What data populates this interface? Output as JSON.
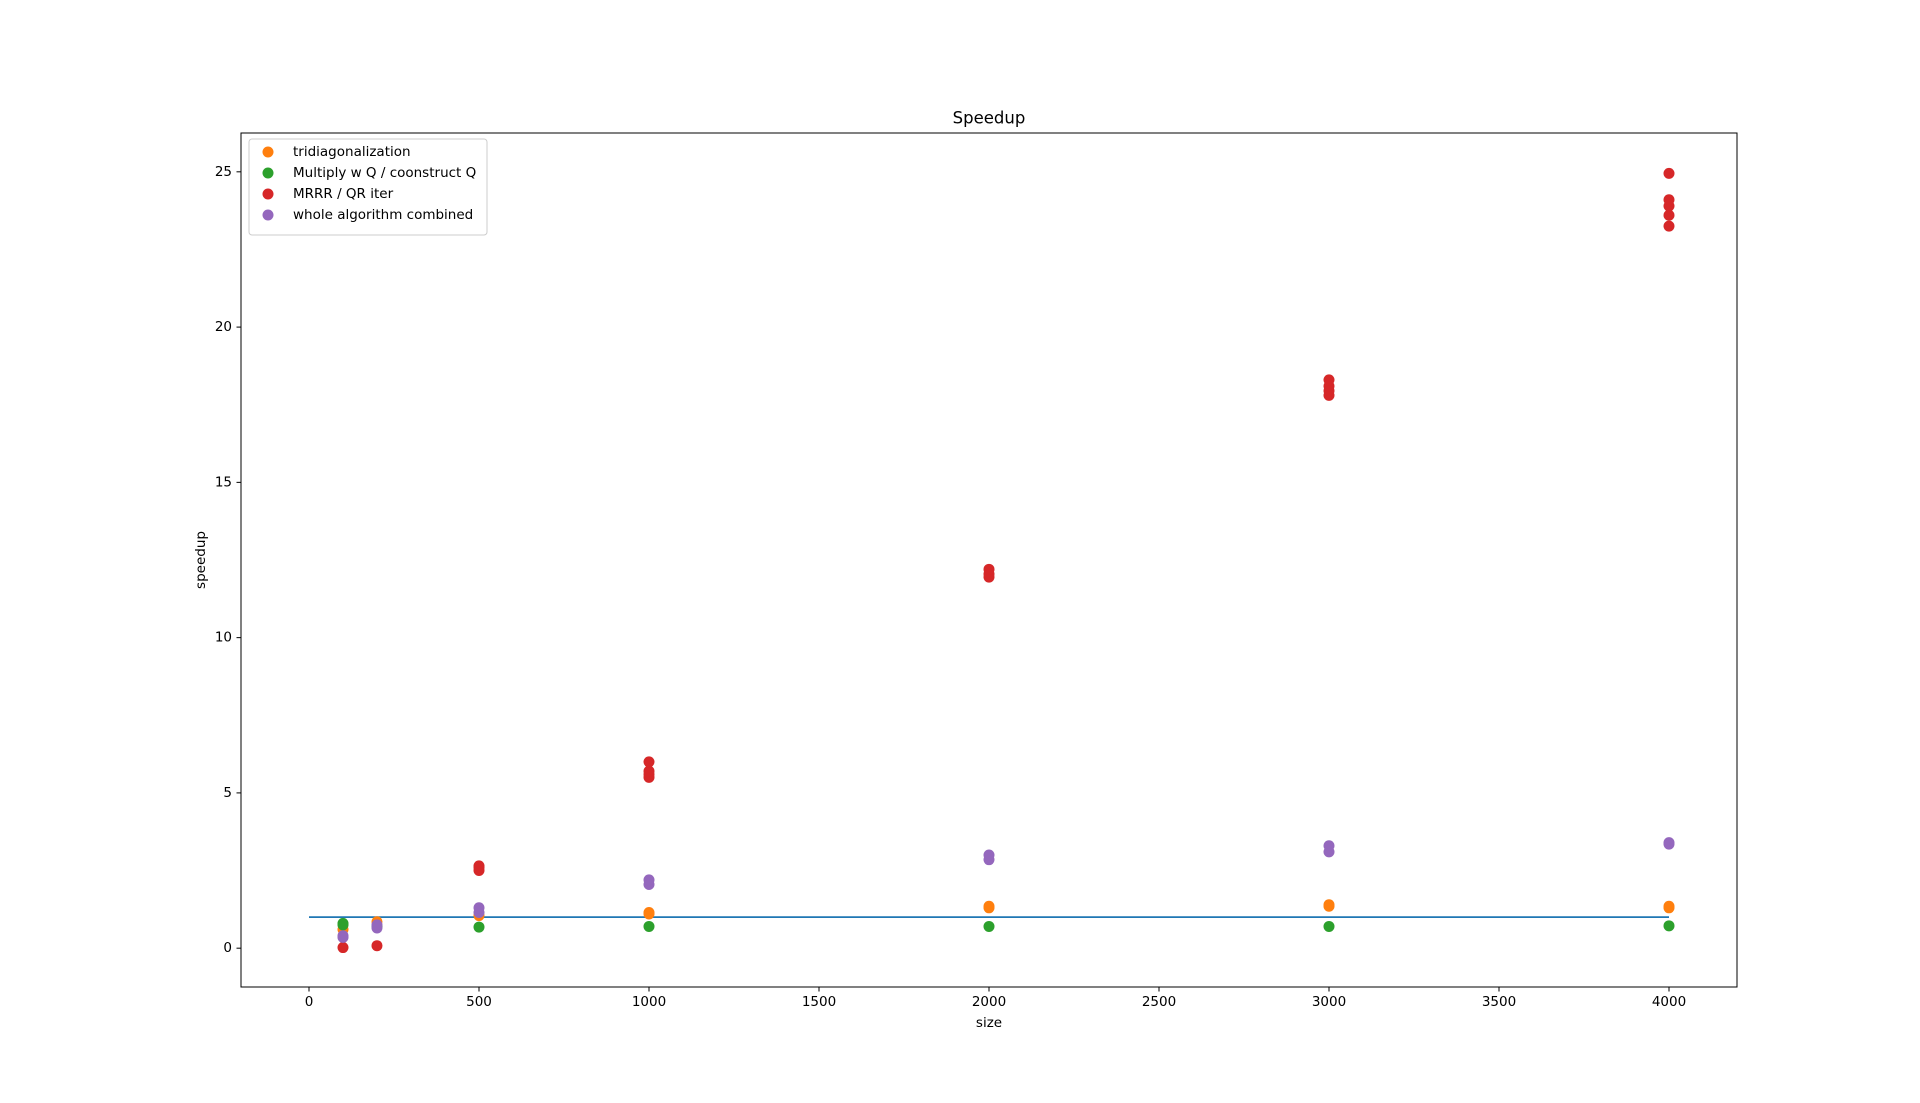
{
  "chart_data": {
    "type": "scatter",
    "title": "Speedup",
    "xlabel": "size",
    "ylabel": "speedup",
    "xlim": [
      -200,
      4200
    ],
    "ylim": [
      -1.25,
      26.25
    ],
    "xticks": [
      0,
      500,
      1000,
      1500,
      2000,
      2500,
      3000,
      3500,
      4000
    ],
    "yticks": [
      0,
      5,
      10,
      15,
      20,
      25
    ],
    "legend": "upper left",
    "reference_line": {
      "color": "#1f77b4",
      "x": [
        0,
        4000
      ],
      "values": [
        1,
        1
      ]
    },
    "series": [
      {
        "name": "tridiagonalization",
        "color": "#ff7f0e",
        "x": [
          100,
          200,
          500,
          1000,
          1000,
          2000,
          2000,
          3000,
          3000,
          4000,
          4000
        ],
        "values": [
          0.6,
          0.85,
          1.05,
          1.1,
          1.15,
          1.35,
          1.3,
          1.4,
          1.35,
          1.35,
          1.3
        ]
      },
      {
        "name": "Multiply w Q / coonstruct Q",
        "color": "#2ca02c",
        "x": [
          100,
          100,
          200,
          500,
          1000,
          2000,
          3000,
          4000
        ],
        "values": [
          0.8,
          0.75,
          0.7,
          0.68,
          0.7,
          0.7,
          0.7,
          0.72
        ]
      },
      {
        "name": "MRRR / QR iter",
        "color": "#d62728",
        "x": [
          100,
          200,
          500,
          500,
          500,
          1000,
          1000,
          1000,
          1000,
          2000,
          2000,
          2000,
          3000,
          3000,
          3000,
          3000,
          4000,
          4000,
          4000,
          4000,
          4000
        ],
        "values": [
          0.02,
          0.08,
          2.5,
          2.6,
          2.65,
          5.5,
          5.6,
          5.7,
          6.0,
          11.95,
          12.05,
          12.2,
          17.8,
          17.95,
          18.1,
          18.3,
          23.25,
          23.6,
          23.9,
          24.1,
          24.95
        ]
      },
      {
        "name": "whole algorithm combined",
        "color": "#9467bd",
        "x": [
          100,
          100,
          200,
          200,
          500,
          500,
          1000,
          1000,
          2000,
          2000,
          3000,
          3000,
          4000,
          4000
        ],
        "values": [
          0.4,
          0.35,
          0.65,
          0.75,
          1.15,
          1.3,
          2.05,
          2.2,
          2.85,
          3.0,
          3.1,
          3.3,
          3.35,
          3.4
        ]
      }
    ]
  }
}
